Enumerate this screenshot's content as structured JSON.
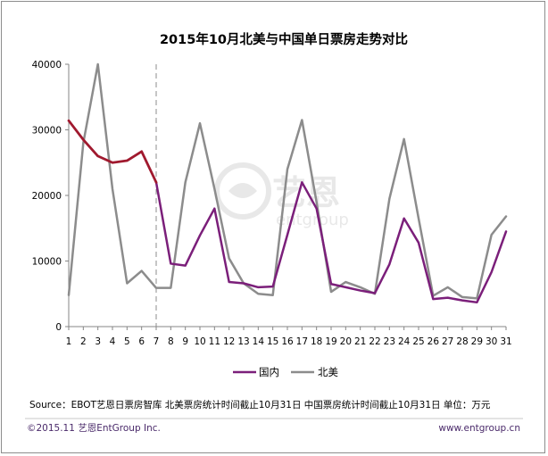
{
  "chart_data": {
    "type": "line",
    "title": "2015年10月北美与中国单日票房走势对比",
    "x": [
      1,
      2,
      3,
      4,
      5,
      6,
      7,
      8,
      9,
      10,
      11,
      12,
      13,
      14,
      15,
      16,
      17,
      18,
      19,
      20,
      21,
      22,
      23,
      24,
      25,
      26,
      27,
      28,
      29,
      30,
      31
    ],
    "xlim": [
      1,
      31
    ],
    "ylim": [
      0,
      40000
    ],
    "yticks": [
      0,
      10000,
      20000,
      30000,
      40000
    ],
    "reference_line_x": 7,
    "series": [
      {
        "name": "国内",
        "color": "#7b1f7a",
        "values": [
          31400,
          28500,
          26000,
          25000,
          25300,
          26700,
          22000,
          9600,
          9300,
          13900,
          18000,
          6800,
          6600,
          6000,
          6100,
          14000,
          22000,
          18000,
          6500,
          6000,
          5500,
          5100,
          9500,
          16500,
          12800,
          4200,
          4400,
          4000,
          3700,
          8300,
          14500
        ],
        "highlight": {
          "from_index": 0,
          "to_index": 6,
          "color": "#a0192e"
        }
      },
      {
        "name": "北美",
        "color": "#8c8c8c",
        "values": [
          4800,
          28000,
          40000,
          21000,
          6600,
          8500,
          5900,
          5900,
          22000,
          31000,
          21000,
          10400,
          6600,
          5000,
          4800,
          24000,
          31500,
          19000,
          5300,
          6800,
          6000,
          5000,
          19500,
          28600,
          16500,
          4700,
          6000,
          4500,
          4300,
          14000,
          16800
        ]
      }
    ],
    "source": "Source：EBOT艺恩日票房智库  北美票房统计时间截止10月31日  中国票房统计时间截止10月31日  单位：万元",
    "watermark": {
      "brand_cn": "艺恩",
      "brand_en": "entgroup"
    },
    "footer": {
      "left": "©2015.11 艺恩EntGroup Inc.",
      "right": "www.entgroup.cn"
    }
  }
}
